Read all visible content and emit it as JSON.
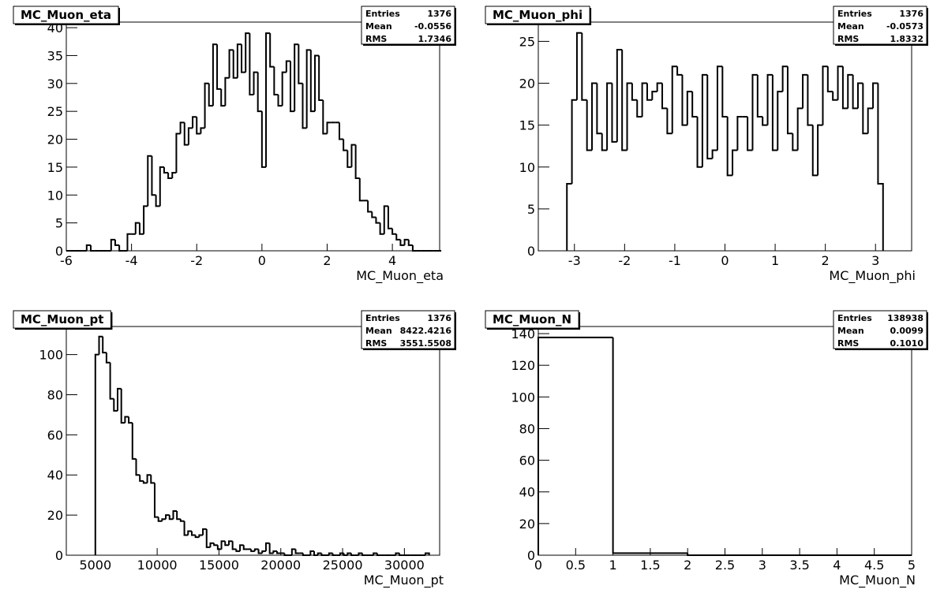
{
  "chart_data": [
    {
      "type": "histogram",
      "title": "MC_Muon_eta",
      "x_label": "MC_Muon_eta",
      "color": "#000000",
      "bins": [
        -6,
        -5.875,
        -5.75,
        -5.625,
        -5.5,
        -5.375,
        -5.25,
        -5.125,
        -5,
        -4.875,
        -4.75,
        -4.625,
        -4.5,
        -4.375,
        -4.25,
        -4.125,
        -4,
        -3.875,
        -3.75,
        -3.625,
        -3.5,
        -3.375,
        -3.25,
        -3.125,
        -3,
        -2.875,
        -2.75,
        -2.625,
        -2.5,
        -2.375,
        -2.25,
        -2.125,
        -2,
        -1.875,
        -1.75,
        -1.625,
        -1.5,
        -1.375,
        -1.25,
        -1.125,
        -1,
        -0.875,
        -0.75,
        -0.625,
        -0.5,
        -0.375,
        -0.25,
        -0.125,
        0,
        0.125,
        0.25,
        0.375,
        0.5,
        0.625,
        0.75,
        0.875,
        1,
        1.125,
        1.25,
        1.375,
        1.5,
        1.625,
        1.75,
        1.875,
        2,
        2.125,
        2.25,
        2.375,
        2.5,
        2.625,
        2.75,
        2.875,
        3,
        3.125,
        3.25,
        3.375,
        3.5,
        3.625,
        3.75,
        3.875,
        4,
        4.125,
        4.25,
        4.375,
        4.5,
        4.625,
        4.75,
        4.875,
        5,
        5.125,
        5.25,
        5.375,
        5.5
      ],
      "values": [
        0,
        0,
        0,
        0,
        0,
        1,
        0,
        0,
        0,
        0,
        0,
        2,
        1,
        0,
        0,
        3,
        3,
        5,
        3,
        8,
        17,
        10,
        8,
        15,
        14,
        13,
        14,
        21,
        23,
        19,
        22,
        24,
        21,
        22,
        30,
        26,
        37,
        29,
        26,
        31,
        36,
        31,
        37,
        32,
        39,
        28,
        32,
        25,
        15,
        39,
        33,
        28,
        26,
        32,
        34,
        25,
        37,
        30,
        22,
        36,
        25,
        35,
        27,
        21,
        23,
        23,
        23,
        20,
        18,
        15,
        19,
        13,
        9,
        9,
        7,
        6,
        5,
        3,
        8,
        4,
        3,
        2,
        1,
        2,
        1,
        0,
        0,
        0,
        0,
        0,
        0,
        0
      ],
      "xlim": [
        -6,
        5.45
      ],
      "ylim": [
        0,
        41
      ],
      "xticks": [
        -6,
        -4,
        -2,
        0,
        2,
        4
      ],
      "yticks": [
        0,
        5,
        10,
        15,
        20,
        25,
        30,
        35,
        40
      ],
      "stats": [
        {
          "name": "Entries",
          "value": 1376
        },
        {
          "name": "Mean",
          "value": -0.0556
        },
        {
          "name": "RMS",
          "value": 1.7346
        }
      ]
    },
    {
      "type": "histogram",
      "title": "MC_Muon_phi",
      "x_label": "MC_Muon_phi",
      "color": "#000000",
      "bins": [
        -3.15,
        -3.05,
        -2.95,
        -2.85,
        -2.75,
        -2.65,
        -2.55,
        -2.45,
        -2.35,
        -2.25,
        -2.15,
        -2.05,
        -1.95,
        -1.85,
        -1.75,
        -1.65,
        -1.55,
        -1.45,
        -1.35,
        -1.25,
        -1.15,
        -1.05,
        -0.95,
        -0.85,
        -0.75,
        -0.65,
        -0.55,
        -0.45,
        -0.35,
        -0.25,
        -0.15,
        -0.05,
        0.05,
        0.15,
        0.25,
        0.35,
        0.45,
        0.55,
        0.65,
        0.75,
        0.85,
        0.95,
        1.05,
        1.15,
        1.25,
        1.35,
        1.45,
        1.55,
        1.65,
        1.75,
        1.85,
        1.95,
        2.05,
        2.15,
        2.25,
        2.35,
        2.45,
        2.55,
        2.65,
        2.75,
        2.85,
        2.95,
        3.05,
        3.15
      ],
      "values": [
        8,
        18,
        26,
        18,
        12,
        20,
        14,
        12,
        20,
        13,
        24,
        12,
        20,
        18,
        16,
        20,
        18,
        19,
        20,
        17,
        14,
        22,
        21,
        15,
        19,
        16,
        10,
        21,
        11,
        12,
        22,
        16,
        9,
        12,
        16,
        16,
        12,
        21,
        16,
        15,
        21,
        12,
        19,
        22,
        14,
        12,
        17,
        21,
        15,
        9,
        15,
        22,
        19,
        18,
        22,
        17,
        21,
        17,
        20,
        14,
        17,
        20,
        8
      ],
      "xlim": [
        -3.72,
        3.72
      ],
      "ylim": [
        0,
        27.3
      ],
      "xticks": [
        -3,
        -2,
        -1,
        0,
        1,
        2,
        3
      ],
      "yticks": [
        0,
        5,
        10,
        15,
        20,
        25
      ],
      "stats": [
        {
          "name": "Entries",
          "value": 1376
        },
        {
          "name": "Mean",
          "value": -0.0573
        },
        {
          "name": "RMS",
          "value": 1.8332
        }
      ]
    },
    {
      "type": "histogram",
      "title": "MC_Muon_pt",
      "x_label": "MC_Muon_pt",
      "color": "#000000",
      "bins": [
        5000,
        5300,
        5600,
        5900,
        6200,
        6500,
        6800,
        7100,
        7400,
        7700,
        8000,
        8300,
        8600,
        8900,
        9200,
        9500,
        9800,
        10100,
        10400,
        10700,
        11000,
        11300,
        11600,
        11900,
        12200,
        12500,
        12800,
        13100,
        13400,
        13700,
        14000,
        14300,
        14600,
        14900,
        15200,
        15500,
        15800,
        16100,
        16400,
        16700,
        17000,
        17300,
        17600,
        17900,
        18200,
        18500,
        18800,
        19100,
        19400,
        19700,
        20000,
        20300,
        20600,
        20900,
        21200,
        21500,
        21800,
        22100,
        22400,
        22700,
        23000,
        23300,
        23600,
        23900,
        24200,
        24500,
        24800,
        25100,
        25400,
        25700,
        26000,
        26300,
        26600,
        26900,
        27200,
        27500,
        27800,
        28100,
        28400,
        28700,
        29000,
        29300,
        29600,
        29900,
        30200,
        30500,
        30800,
        31100,
        31400,
        31700,
        32000
      ],
      "values": [
        100,
        109,
        101,
        96,
        78,
        72,
        83,
        66,
        69,
        66,
        48,
        40,
        37,
        36,
        40,
        36,
        19,
        17,
        18,
        20,
        18,
        22,
        18,
        17,
        10,
        12,
        10,
        9,
        10,
        13,
        4,
        6,
        5,
        3,
        7,
        5,
        7,
        3,
        2,
        5,
        3,
        3,
        2,
        3,
        1,
        2,
        6,
        1,
        2,
        1,
        1,
        0,
        0,
        3,
        1,
        1,
        0,
        0,
        2,
        0,
        1,
        0,
        0,
        1,
        0,
        0,
        1,
        0,
        1,
        0,
        0,
        1,
        0,
        0,
        0,
        1,
        0,
        0,
        0,
        0,
        0,
        1,
        0,
        0,
        0,
        0,
        0,
        0,
        0,
        1
      ],
      "xlim": [
        2650,
        32850
      ],
      "ylim": [
        0,
        114
      ],
      "xticks": [
        5000,
        10000,
        15000,
        20000,
        25000,
        30000
      ],
      "yticks": [
        0,
        20,
        40,
        60,
        80,
        100
      ],
      "stats": [
        {
          "name": "Entries",
          "value": 1376
        },
        {
          "name": "Mean",
          "value": 8422.4216
        },
        {
          "name": "RMS",
          "value": 3551.5508
        }
      ]
    },
    {
      "type": "histogram",
      "title": "MC_Muon_N",
      "x_label": "MC_Muon_N",
      "color": "#000000",
      "bins": [
        0,
        1,
        2,
        3,
        4,
        5
      ],
      "values": [
        137.6,
        1.3,
        0,
        0,
        0
      ],
      "xlim": [
        0,
        5
      ],
      "ylim": [
        0,
        144.5
      ],
      "xticks": [
        0,
        0.5,
        1,
        1.5,
        2,
        2.5,
        3,
        3.5,
        4,
        4.5,
        5
      ],
      "yticks": [
        0,
        20,
        40,
        60,
        80,
        100,
        120,
        140
      ],
      "stats": [
        {
          "name": "Entries",
          "value": 138938
        },
        {
          "name": "Mean",
          "value": 0.0099
        },
        {
          "name": "RMS",
          "value": {
            "value": 0.101,
            "label": "0.1010"
          }
        }
      ]
    }
  ]
}
